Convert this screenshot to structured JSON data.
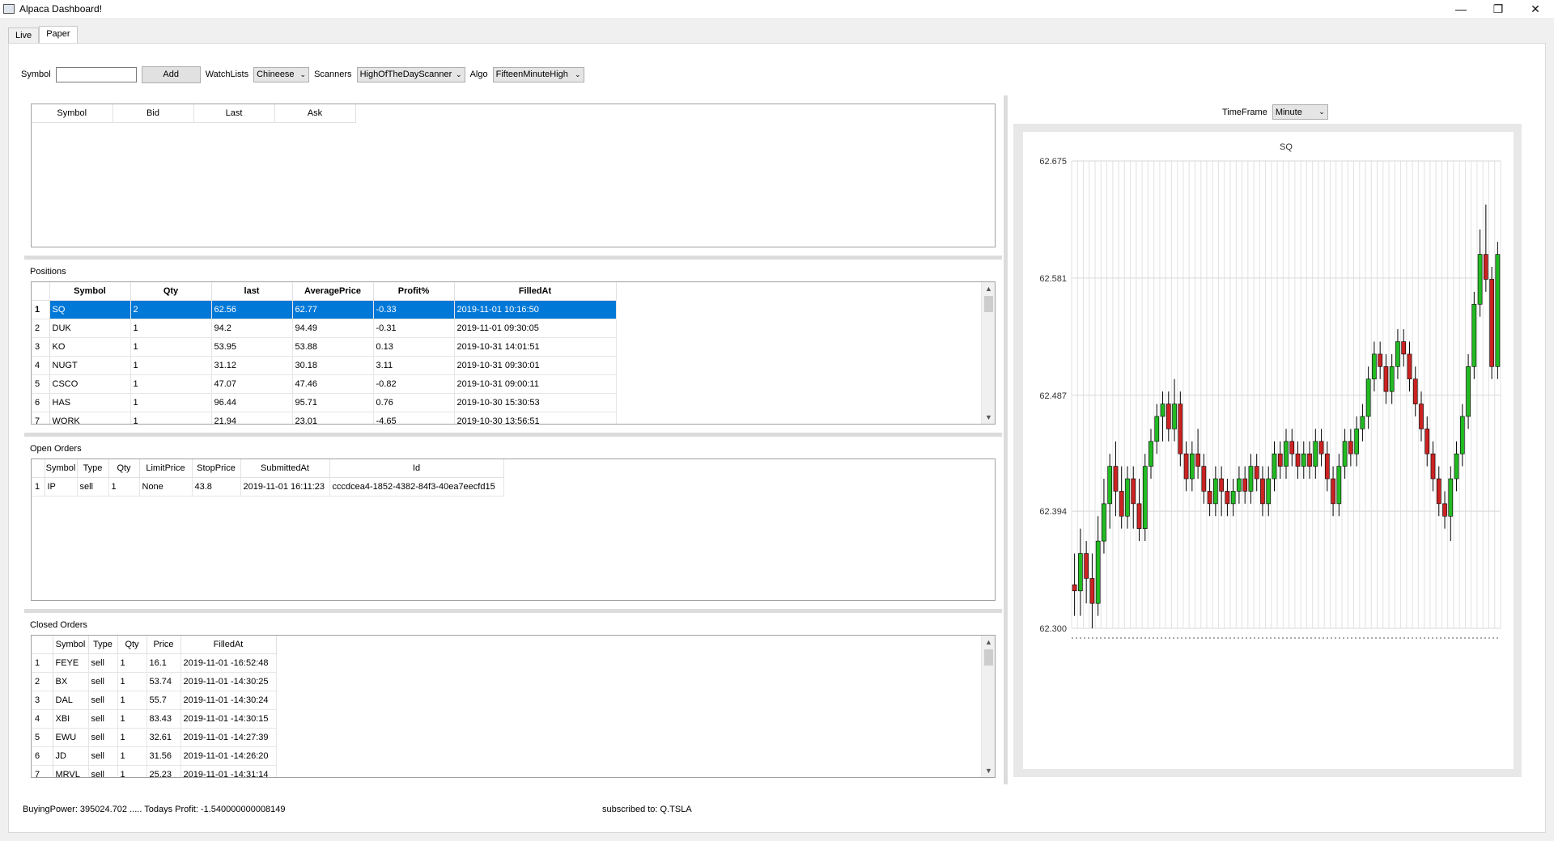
{
  "window": {
    "title": "Alpaca Dashboard!"
  },
  "tabs": [
    {
      "label": "Live"
    },
    {
      "label": "Paper"
    }
  ],
  "toolbar": {
    "symbol_label": "Symbol",
    "symbol_value": "",
    "add_label": "Add",
    "watchlists_label": "WatchLists",
    "watchlists_value": "Chineese",
    "scanners_label": "Scanners",
    "scanners_value": "HighOfTheDayScanner",
    "algo_label": "Algo",
    "algo_value": "FifteenMinuteHigh"
  },
  "quotes": {
    "columns": [
      "Symbol",
      "Bid",
      "Last",
      "Ask"
    ]
  },
  "positions": {
    "label": "Positions",
    "columns": [
      "Symbol",
      "Qty",
      "last",
      "AveragePrice",
      "Profit%",
      "FilledAt"
    ],
    "rows": [
      [
        "1",
        "SQ",
        "2",
        "62.56",
        "62.77",
        "-0.33",
        "2019-11-01 10:16:50"
      ],
      [
        "2",
        "DUK",
        "1",
        "94.2",
        "94.49",
        "-0.31",
        "2019-11-01 09:30:05"
      ],
      [
        "3",
        "KO",
        "1",
        "53.95",
        "53.88",
        "0.13",
        "2019-10-31 14:01:51"
      ],
      [
        "4",
        "NUGT",
        "1",
        "31.12",
        "30.18",
        "3.11",
        "2019-10-31 09:30:01"
      ],
      [
        "5",
        "CSCO",
        "1",
        "47.07",
        "47.46",
        "-0.82",
        "2019-10-31 09:00:11"
      ],
      [
        "6",
        "HAS",
        "1",
        "96.44",
        "95.71",
        "0.76",
        "2019-10-30 15:30:53"
      ],
      [
        "7",
        "WORK",
        "1",
        "21.94",
        "23.01",
        "-4.65",
        "2019-10-30 13:56:51"
      ]
    ]
  },
  "open_orders": {
    "label": "Open Orders",
    "columns": [
      "Symbol",
      "Type",
      "Qty",
      "LimitPrice",
      "StopPrice",
      "SubmittedAt",
      "Id"
    ],
    "rows": [
      [
        "1",
        "IP",
        "sell",
        "1",
        "None",
        "43.8",
        "2019-11-01 16:11:23",
        "cccdcea4-1852-4382-84f3-40ea7eecfd15"
      ]
    ]
  },
  "closed_orders": {
    "label": "Closed Orders",
    "columns": [
      "Symbol",
      "Type",
      "Qty",
      "Price",
      "FilledAt"
    ],
    "rows": [
      [
        "1",
        "FEYE",
        "sell",
        "1",
        "16.1",
        "2019-11-01 -16:52:48"
      ],
      [
        "2",
        "BX",
        "sell",
        "1",
        "53.74",
        "2019-11-01 -14:30:25"
      ],
      [
        "3",
        "DAL",
        "sell",
        "1",
        "55.7",
        "2019-11-01 -14:30:24"
      ],
      [
        "4",
        "XBI",
        "sell",
        "1",
        "83.43",
        "2019-11-01 -14:30:15"
      ],
      [
        "5",
        "EWU",
        "sell",
        "1",
        "32.61",
        "2019-11-01 -14:27:39"
      ],
      [
        "6",
        "JD",
        "sell",
        "1",
        "31.56",
        "2019-11-01 -14:26:20"
      ],
      [
        "7",
        "MRVL",
        "sell",
        "1",
        "25.23",
        "2019-11-01 -14:31:14"
      ]
    ]
  },
  "status": {
    "buying_power": "BuyingPower: 395024.702 .....  Todays Profit: -1.540000000008149",
    "subscribed": "subscribed to: Q.TSLA"
  },
  "timeframe": {
    "label": "TimeFrame",
    "value": "Minute"
  },
  "colors": {
    "up": "#22bb22",
    "down": "#cc2222",
    "selection": "#0078d7"
  },
  "chart_data": {
    "type": "candlestick",
    "title": "SQ",
    "ylim": [
      62.3,
      62.675
    ],
    "yticks": [
      "62.675",
      "62.581",
      "62.487",
      "62.394",
      "62.300"
    ],
    "candles": [
      [
        62.335,
        62.33,
        62.36,
        62.31
      ],
      [
        62.33,
        62.36,
        62.38,
        62.31
      ],
      [
        62.36,
        62.34,
        62.37,
        62.32
      ],
      [
        62.34,
        62.32,
        62.36,
        62.3
      ],
      [
        62.32,
        62.37,
        62.39,
        62.31
      ],
      [
        62.37,
        62.4,
        62.42,
        62.36
      ],
      [
        62.4,
        62.43,
        62.44,
        62.38
      ],
      [
        62.43,
        62.41,
        62.45,
        62.39
      ],
      [
        62.41,
        62.39,
        62.43,
        62.38
      ],
      [
        62.39,
        62.42,
        62.43,
        62.38
      ],
      [
        62.42,
        62.4,
        62.43,
        62.38
      ],
      [
        62.4,
        62.38,
        62.42,
        62.37
      ],
      [
        62.38,
        62.43,
        62.44,
        62.37
      ],
      [
        62.43,
        62.45,
        62.46,
        62.42
      ],
      [
        62.45,
        62.47,
        62.48,
        62.44
      ],
      [
        62.47,
        62.48,
        62.49,
        62.45
      ],
      [
        62.48,
        62.46,
        62.49,
        62.45
      ],
      [
        62.46,
        62.48,
        62.5,
        62.45
      ],
      [
        62.48,
        62.44,
        62.49,
        62.43
      ],
      [
        62.44,
        62.42,
        62.45,
        62.41
      ],
      [
        62.42,
        62.44,
        62.45,
        62.41
      ],
      [
        62.44,
        62.43,
        62.46,
        62.42
      ],
      [
        62.43,
        62.41,
        62.44,
        62.4
      ],
      [
        62.41,
        62.4,
        62.42,
        62.39
      ],
      [
        62.4,
        62.42,
        62.43,
        62.39
      ],
      [
        62.42,
        62.41,
        62.43,
        62.39
      ],
      [
        62.41,
        62.4,
        62.42,
        62.39
      ],
      [
        62.4,
        62.41,
        62.42,
        62.39
      ],
      [
        62.41,
        62.42,
        62.43,
        62.4
      ],
      [
        62.42,
        62.41,
        62.43,
        62.4
      ],
      [
        62.41,
        62.43,
        62.44,
        62.4
      ],
      [
        62.43,
        62.42,
        62.44,
        62.41
      ],
      [
        62.42,
        62.4,
        62.43,
        62.39
      ],
      [
        62.4,
        62.42,
        62.43,
        62.39
      ],
      [
        62.42,
        62.44,
        62.45,
        62.41
      ],
      [
        62.44,
        62.43,
        62.45,
        62.42
      ],
      [
        62.43,
        62.45,
        62.46,
        62.42
      ],
      [
        62.45,
        62.44,
        62.46,
        62.43
      ],
      [
        62.44,
        62.43,
        62.45,
        62.42
      ],
      [
        62.43,
        62.44,
        62.45,
        62.42
      ],
      [
        62.44,
        62.43,
        62.45,
        62.42
      ],
      [
        62.43,
        62.45,
        62.46,
        62.42
      ],
      [
        62.45,
        62.44,
        62.46,
        62.43
      ],
      [
        62.44,
        62.42,
        62.45,
        62.41
      ],
      [
        62.42,
        62.4,
        62.43,
        62.39
      ],
      [
        62.4,
        62.43,
        62.44,
        62.39
      ],
      [
        62.43,
        62.45,
        62.46,
        62.42
      ],
      [
        62.45,
        62.44,
        62.46,
        62.43
      ],
      [
        62.44,
        62.46,
        62.47,
        62.43
      ],
      [
        62.46,
        62.47,
        62.48,
        62.45
      ],
      [
        62.47,
        62.5,
        62.51,
        62.46
      ],
      [
        62.5,
        62.52,
        62.53,
        62.49
      ],
      [
        62.52,
        62.51,
        62.53,
        62.5
      ],
      [
        62.51,
        62.49,
        62.52,
        62.48
      ],
      [
        62.49,
        62.51,
        62.52,
        62.48
      ],
      [
        62.51,
        62.53,
        62.54,
        62.5
      ],
      [
        62.53,
        62.52,
        62.54,
        62.51
      ],
      [
        62.52,
        62.5,
        62.53,
        62.49
      ],
      [
        62.5,
        62.48,
        62.51,
        62.47
      ],
      [
        62.48,
        62.46,
        62.49,
        62.45
      ],
      [
        62.46,
        62.44,
        62.47,
        62.43
      ],
      [
        62.44,
        62.42,
        62.45,
        62.41
      ],
      [
        62.42,
        62.4,
        62.43,
        62.39
      ],
      [
        62.4,
        62.39,
        62.41,
        62.38
      ],
      [
        62.39,
        62.42,
        62.43,
        62.37
      ],
      [
        62.42,
        62.44,
        62.45,
        62.41
      ],
      [
        62.44,
        62.47,
        62.48,
        62.43
      ],
      [
        62.47,
        62.51,
        62.52,
        62.46
      ],
      [
        62.51,
        62.56,
        62.57,
        62.5
      ],
      [
        62.56,
        62.6,
        62.62,
        62.55
      ],
      [
        62.6,
        62.58,
        62.64,
        62.57
      ],
      [
        62.58,
        62.51,
        62.59,
        62.5
      ],
      [
        62.51,
        62.6,
        62.61,
        62.5
      ]
    ]
  }
}
